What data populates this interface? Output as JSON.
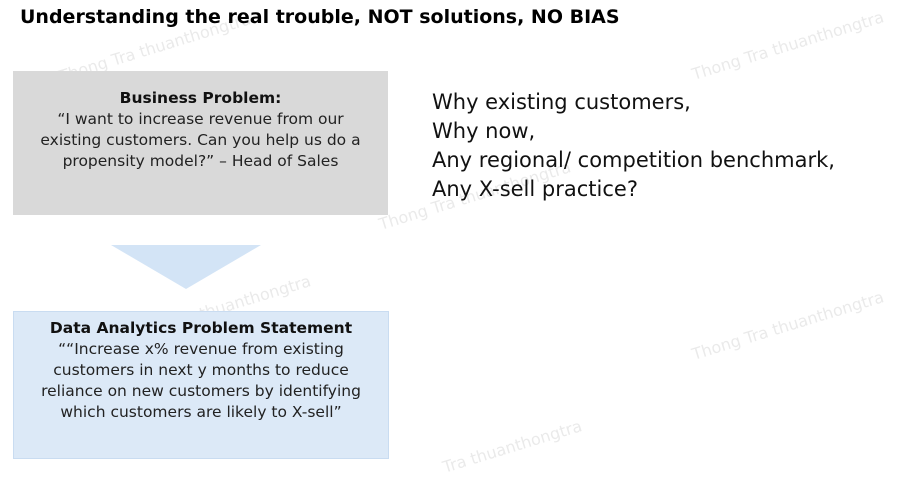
{
  "title": "Understanding the real trouble, NOT solutions, NO BIAS",
  "business_problem": {
    "heading": "Business Problem:",
    "body": "“I want to increase revenue from our existing customers. Can you help us do a propensity model?” – Head of Sales"
  },
  "data_problem": {
    "heading": "Data Analytics Problem Statement",
    "body": "““Increase x% revenue from existing customers in next y months to reduce reliance on new customers by identifying which customers are likely to X-sell”"
  },
  "questions": [
    "Why existing customers,",
    "Why now,",
    "Any regional/ competition benchmark,",
    "Any X-sell practice?"
  ],
  "watermarks": [
    "Thong Tra thuanthongtra",
    "Thong Tra thuanthongtra",
    "Thong Tra thuanthongtra",
    "Thong Tra thuanthongtra",
    "Thong Tra thuanthongtra",
    "Tra thuanthongtra"
  ],
  "colors": {
    "business_box_bg": "#d9d9d9",
    "data_box_bg": "#dce9f7",
    "arrow_fill": "#d3e4f6"
  }
}
